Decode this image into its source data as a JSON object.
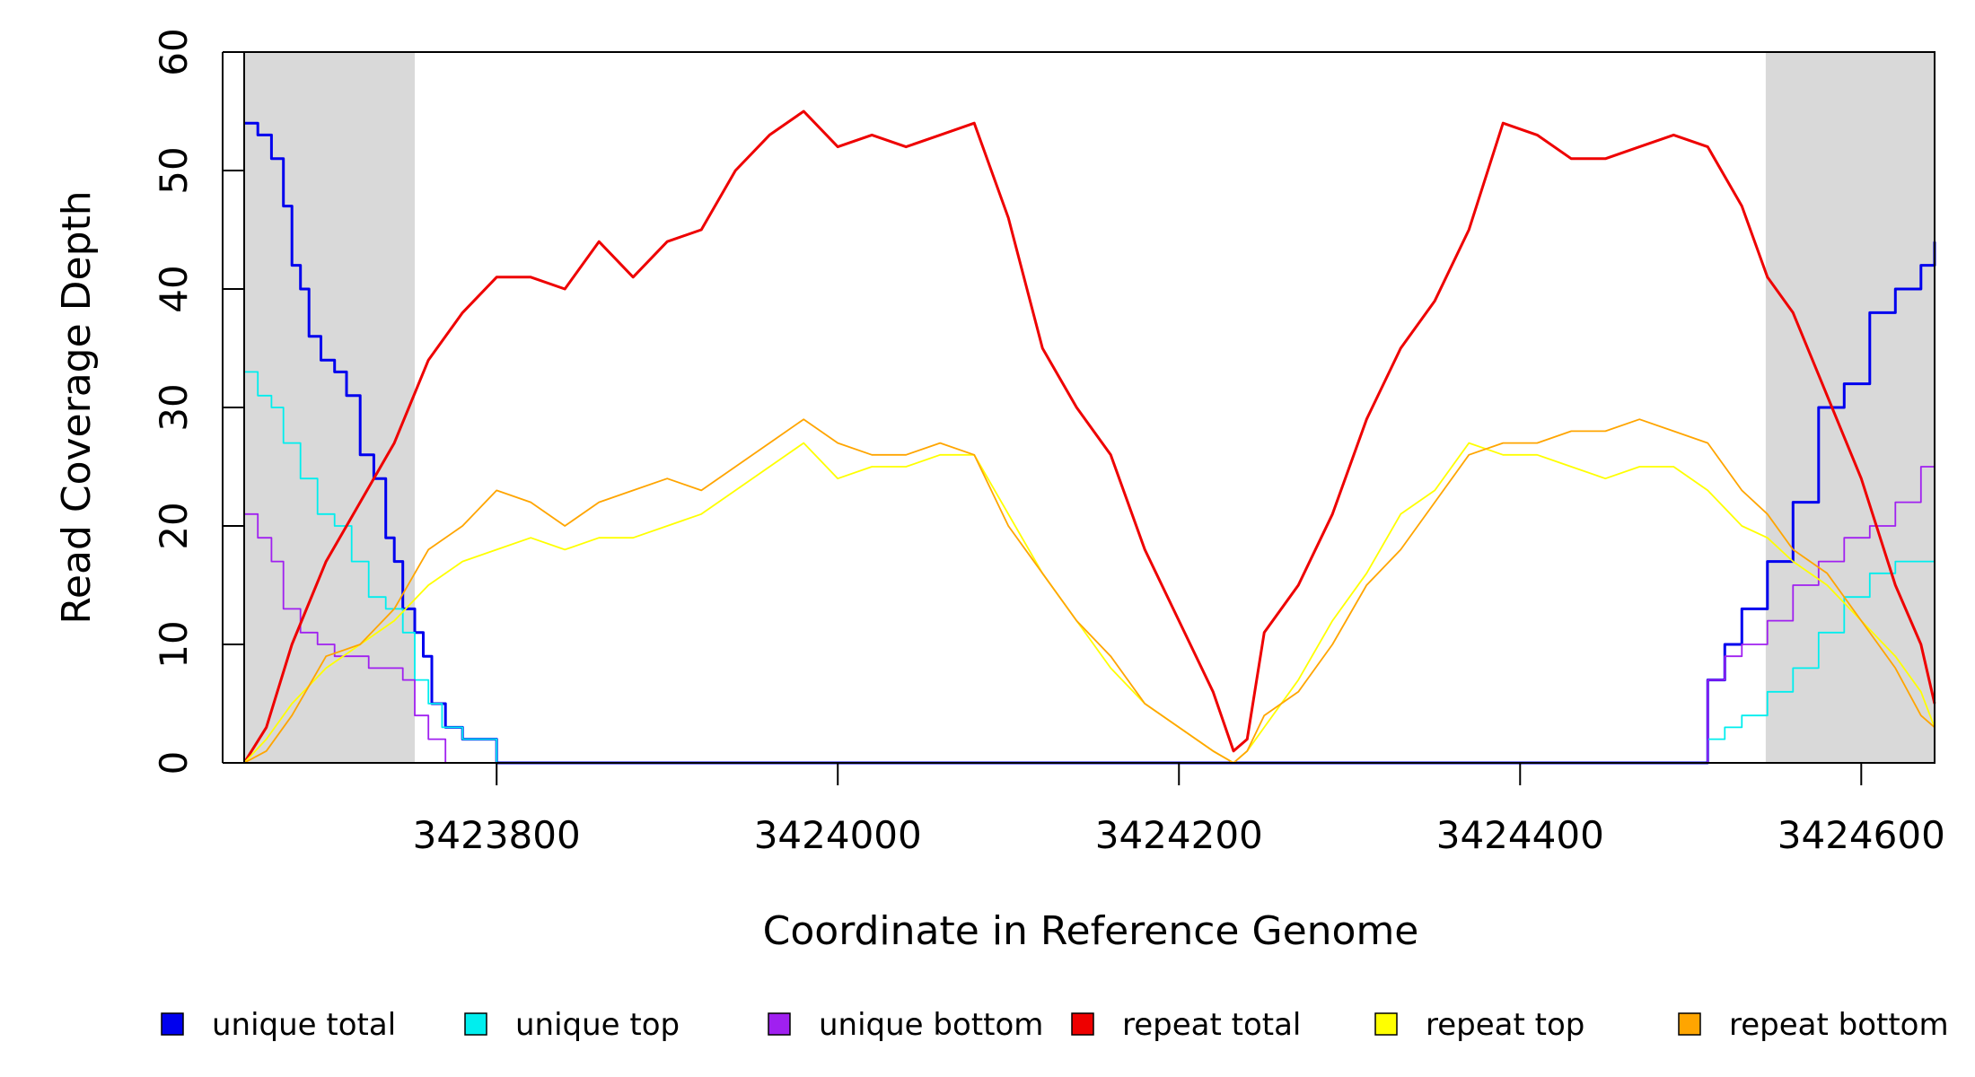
{
  "chart_data": {
    "type": "line",
    "xlabel": "Coordinate in Reference Genome",
    "ylabel": "Read Coverage Depth",
    "xlim": [
      3423652,
      3424643
    ],
    "ylim": [
      0,
      60
    ],
    "x_ticks": [
      3423800,
      3424000,
      3424200,
      3424400,
      3424600
    ],
    "x_tick_labels": [
      "3423800",
      "3424000",
      "3424200",
      "3424400",
      "3424600"
    ],
    "y_ticks": [
      0,
      10,
      20,
      30,
      40,
      50,
      60
    ],
    "y_tick_labels": [
      "0",
      "10",
      "20",
      "30",
      "40",
      "50",
      "60"
    ],
    "shaded_regions": [
      [
        3423652,
        3423752
      ],
      [
        3424544,
        3424643
      ]
    ],
    "shaded_color": "#d9d9d9",
    "legend_position": "bottom",
    "series": [
      {
        "name": "unique total",
        "color": "#0000ee",
        "step": true,
        "x": [
          3423652,
          3423660,
          3423668,
          3423675,
          3423680,
          3423685,
          3423690,
          3423697,
          3423705,
          3423712,
          3423720,
          3423728,
          3423735,
          3423740,
          3423745,
          3423752,
          3423757,
          3423762,
          3423770,
          3423780,
          3423800,
          3424505,
          3424510,
          3424520,
          3424530,
          3424545,
          3424560,
          3424575,
          3424590,
          3424605,
          3424620,
          3424635,
          3424643
        ],
        "y": [
          54,
          53,
          51,
          47,
          42,
          40,
          36,
          34,
          33,
          31,
          26,
          24,
          19,
          17,
          13,
          11,
          9,
          5,
          3,
          2,
          0,
          0,
          7,
          10,
          13,
          17,
          22,
          30,
          32,
          38,
          40,
          42,
          44
        ]
      },
      {
        "name": "unique top",
        "color": "#00eeee",
        "step": true,
        "x": [
          3423652,
          3423660,
          3423668,
          3423675,
          3423685,
          3423695,
          3423705,
          3423715,
          3423725,
          3423735,
          3423745,
          3423752,
          3423760,
          3423768,
          3423780,
          3423800,
          3424505,
          3424510,
          3424520,
          3424530,
          3424545,
          3424560,
          3424575,
          3424590,
          3424605,
          3424620,
          3424635,
          3424643
        ],
        "y": [
          33,
          31,
          30,
          27,
          24,
          21,
          20,
          17,
          14,
          13,
          11,
          7,
          5,
          3,
          2,
          0,
          0,
          2,
          3,
          4,
          6,
          8,
          11,
          14,
          16,
          17,
          17,
          18
        ]
      },
      {
        "name": "unique bottom",
        "color": "#a020f0",
        "step": true,
        "x": [
          3423652,
          3423660,
          3423668,
          3423675,
          3423685,
          3423695,
          3423705,
          3423715,
          3423725,
          3423735,
          3423745,
          3423752,
          3423760,
          3423770,
          3423780,
          3424505,
          3424510,
          3424520,
          3424530,
          3424545,
          3424560,
          3424575,
          3424590,
          3424605,
          3424620,
          3424635,
          3424643
        ],
        "y": [
          21,
          19,
          17,
          13,
          11,
          10,
          9,
          9,
          8,
          8,
          7,
          4,
          2,
          0,
          0,
          0,
          7,
          9,
          10,
          12,
          15,
          17,
          19,
          20,
          22,
          25,
          25
        ]
      },
      {
        "name": "repeat total",
        "color": "#ee0000",
        "step": false,
        "x": [
          3423652,
          3423665,
          3423680,
          3423700,
          3423720,
          3423740,
          3423760,
          3423780,
          3423800,
          3423820,
          3423840,
          3423860,
          3423880,
          3423900,
          3423920,
          3423940,
          3423960,
          3423980,
          3424000,
          3424020,
          3424040,
          3424060,
          3424080,
          3424100,
          3424120,
          3424140,
          3424160,
          3424180,
          3424200,
          3424220,
          3424232,
          3424240,
          3424250,
          3424270,
          3424290,
          3424310,
          3424330,
          3424350,
          3424370,
          3424390,
          3424410,
          3424430,
          3424450,
          3424470,
          3424490,
          3424510,
          3424530,
          3424545,
          3424560,
          3424580,
          3424600,
          3424620,
          3424635,
          3424643
        ],
        "y": [
          0,
          3,
          10,
          17,
          22,
          27,
          34,
          38,
          41,
          41,
          40,
          44,
          41,
          44,
          45,
          50,
          53,
          55,
          52,
          53,
          52,
          53,
          54,
          46,
          35,
          30,
          26,
          18,
          12,
          6,
          1,
          2,
          11,
          15,
          21,
          29,
          35,
          39,
          45,
          54,
          53,
          51,
          51,
          52,
          53,
          52,
          47,
          41,
          38,
          31,
          24,
          15,
          10,
          5
        ]
      },
      {
        "name": "repeat top",
        "color": "#ffff00",
        "step": false,
        "x": [
          3423652,
          3423665,
          3423680,
          3423700,
          3423720,
          3423740,
          3423760,
          3423780,
          3423800,
          3423820,
          3423840,
          3423860,
          3423880,
          3423900,
          3423920,
          3423940,
          3423960,
          3423980,
          3424000,
          3424020,
          3424040,
          3424060,
          3424080,
          3424100,
          3424120,
          3424140,
          3424160,
          3424180,
          3424200,
          3424220,
          3424232,
          3424240,
          3424250,
          3424270,
          3424290,
          3424310,
          3424330,
          3424350,
          3424370,
          3424390,
          3424410,
          3424430,
          3424450,
          3424470,
          3424490,
          3424510,
          3424530,
          3424545,
          3424560,
          3424580,
          3424600,
          3424620,
          3424635,
          3424643
        ],
        "y": [
          0,
          2,
          5,
          8,
          10,
          12,
          15,
          17,
          18,
          19,
          18,
          19,
          19,
          20,
          21,
          23,
          25,
          27,
          24,
          25,
          25,
          26,
          26,
          21,
          16,
          12,
          8,
          5,
          3,
          1,
          0,
          1,
          3,
          7,
          12,
          16,
          21,
          23,
          27,
          26,
          26,
          25,
          24,
          25,
          25,
          23,
          20,
          19,
          17,
          15,
          12,
          9,
          6,
          3
        ]
      },
      {
        "name": "repeat bottom",
        "color": "#ffa500",
        "step": false,
        "x": [
          3423652,
          3423665,
          3423680,
          3423700,
          3423720,
          3423740,
          3423760,
          3423780,
          3423800,
          3423820,
          3423840,
          3423860,
          3423880,
          3423900,
          3423920,
          3423940,
          3423960,
          3423980,
          3424000,
          3424020,
          3424040,
          3424060,
          3424080,
          3424100,
          3424120,
          3424140,
          3424160,
          3424180,
          3424200,
          3424220,
          3424232,
          3424240,
          3424250,
          3424270,
          3424290,
          3424310,
          3424330,
          3424350,
          3424370,
          3424390,
          3424410,
          3424430,
          3424450,
          3424470,
          3424490,
          3424510,
          3424530,
          3424545,
          3424560,
          3424580,
          3424600,
          3424620,
          3424635,
          3424643
        ],
        "y": [
          0,
          1,
          4,
          9,
          10,
          13,
          18,
          20,
          23,
          22,
          20,
          22,
          23,
          24,
          23,
          25,
          27,
          29,
          27,
          26,
          26,
          27,
          26,
          20,
          16,
          12,
          9,
          5,
          3,
          1,
          0,
          1,
          4,
          6,
          10,
          15,
          18,
          22,
          26,
          27,
          27,
          28,
          28,
          29,
          28,
          27,
          23,
          21,
          18,
          16,
          12,
          8,
          4,
          3
        ]
      }
    ]
  }
}
